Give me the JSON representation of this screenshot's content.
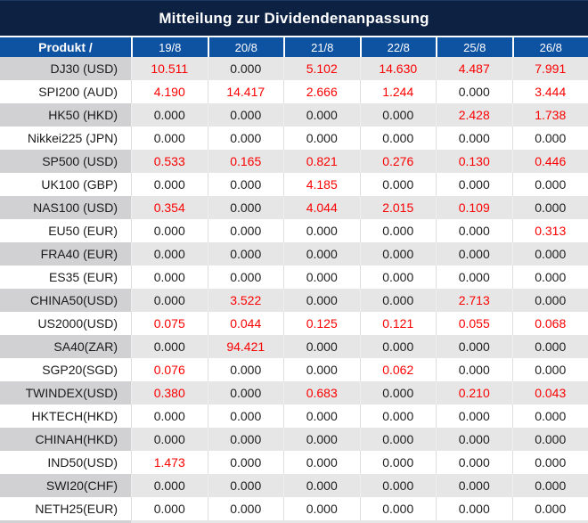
{
  "title": "Mitteilung zur Dividendenanpassung",
  "colors": {
    "title_bar_bg": "#0d2142",
    "header_row_bg": "#0e52a2",
    "positive_value_red": "#fb0000",
    "zero_value_black": "#1d1d1d",
    "stripe_label_gray": "#d1d0d3",
    "stripe_value_gray": "#e7e6e6"
  },
  "table": {
    "product_header": "Produkt /",
    "date_columns": [
      "19/8",
      "20/8",
      "21/8",
      "22/8",
      "25/8",
      "26/8"
    ],
    "zero_value": "0.000",
    "rows": [
      {
        "product": "DJ30 (USD)",
        "values": [
          "10.511",
          "0.000",
          "5.102",
          "14.630",
          "4.487",
          "7.991"
        ]
      },
      {
        "product": "SPI200 (AUD)",
        "values": [
          "4.190",
          "14.417",
          "2.666",
          "1.244",
          "0.000",
          "3.444"
        ]
      },
      {
        "product": "HK50 (HKD)",
        "values": [
          "0.000",
          "0.000",
          "0.000",
          "0.000",
          "2.428",
          "1.738"
        ]
      },
      {
        "product": "Nikkei225 (JPN)",
        "values": [
          "0.000",
          "0.000",
          "0.000",
          "0.000",
          "0.000",
          "0.000"
        ]
      },
      {
        "product": "SP500 (USD)",
        "values": [
          "0.533",
          "0.165",
          "0.821",
          "0.276",
          "0.130",
          "0.446"
        ]
      },
      {
        "product": "UK100 (GBP)",
        "values": [
          "0.000",
          "0.000",
          "4.185",
          "0.000",
          "0.000",
          "0.000"
        ]
      },
      {
        "product": "NAS100 (USD)",
        "values": [
          "0.354",
          "0.000",
          "4.044",
          "2.015",
          "0.109",
          "0.000"
        ]
      },
      {
        "product": "EU50 (EUR)",
        "values": [
          "0.000",
          "0.000",
          "0.000",
          "0.000",
          "0.000",
          "0.313"
        ]
      },
      {
        "product": "FRA40 (EUR)",
        "values": [
          "0.000",
          "0.000",
          "0.000",
          "0.000",
          "0.000",
          "0.000"
        ]
      },
      {
        "product": "ES35 (EUR)",
        "values": [
          "0.000",
          "0.000",
          "0.000",
          "0.000",
          "0.000",
          "0.000"
        ]
      },
      {
        "product": "CHINA50(USD)",
        "values": [
          "0.000",
          "3.522",
          "0.000",
          "0.000",
          "2.713",
          "0.000"
        ]
      },
      {
        "product": "US2000(USD)",
        "values": [
          "0.075",
          "0.044",
          "0.125",
          "0.121",
          "0.055",
          "0.068"
        ]
      },
      {
        "product": "SA40(ZAR)",
        "values": [
          "0.000",
          "94.421",
          "0.000",
          "0.000",
          "0.000",
          "0.000"
        ]
      },
      {
        "product": "SGP20(SGD)",
        "values": [
          "0.076",
          "0.000",
          "0.000",
          "0.062",
          "0.000",
          "0.000"
        ]
      },
      {
        "product": "TWINDEX(USD)",
        "values": [
          "0.380",
          "0.000",
          "0.683",
          "0.000",
          "0.210",
          "0.043"
        ]
      },
      {
        "product": "HKTECH(HKD)",
        "values": [
          "0.000",
          "0.000",
          "0.000",
          "0.000",
          "0.000",
          "0.000"
        ]
      },
      {
        "product": "CHINAH(HKD)",
        "values": [
          "0.000",
          "0.000",
          "0.000",
          "0.000",
          "0.000",
          "0.000"
        ]
      },
      {
        "product": "IND50(USD)",
        "values": [
          "1.473",
          "0.000",
          "0.000",
          "0.000",
          "0.000",
          "0.000"
        ]
      },
      {
        "product": "SWI20(CHF)",
        "values": [
          "0.000",
          "0.000",
          "0.000",
          "0.000",
          "0.000",
          "0.000"
        ]
      },
      {
        "product": "NETH25(EUR)",
        "values": [
          "0.000",
          "0.000",
          "0.000",
          "0.000",
          "0.000",
          "0.000"
        ]
      }
    ]
  }
}
